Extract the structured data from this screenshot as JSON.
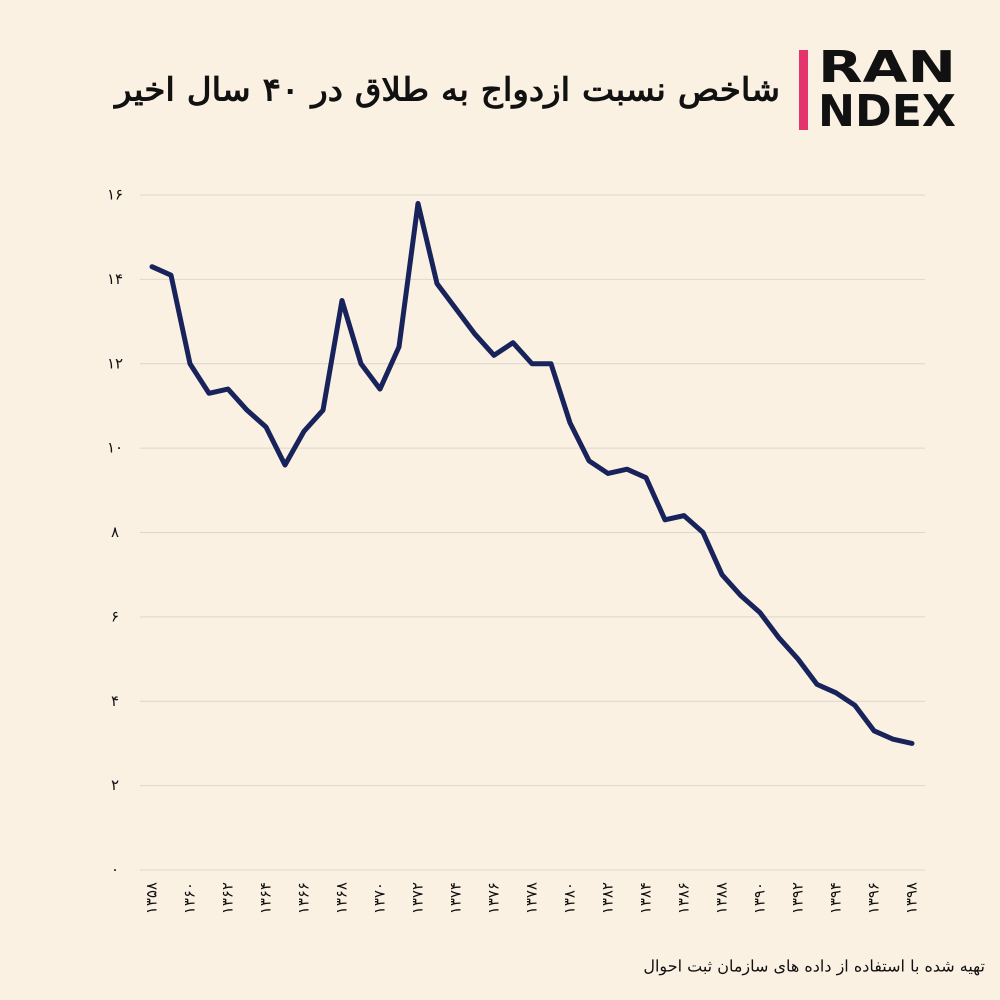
{
  "chart_data": {
    "type": "line",
    "title": "شاخص نسبت ازدواج به طلاق در ۴۰ سال اخیر",
    "logo": [
      "RAN",
      "NDEX"
    ],
    "source": "تهیه شده با استفاده از داده های سازمان ثبت احوال",
    "categories": [
      "۱۳۵۸",
      null,
      "۱۳۶۰",
      null,
      "۱۳۶۲",
      null,
      "۱۳۶۴",
      null,
      "۱۳۶۶",
      null,
      "۱۳۶۸",
      null,
      "۱۳۷۰",
      null,
      "۱۳۷۲",
      null,
      "۱۳۷۴",
      null,
      "۱۳۷۶",
      null,
      "۱۳۷۸",
      null,
      "۱۳۸۰",
      null,
      "۱۳۸۲",
      null,
      "۱۳۸۴",
      null,
      "۱۳۸۶",
      null,
      "۱۳۸۸",
      null,
      "۱۳۹۰",
      null,
      "۱۳۹۲",
      null,
      "۱۳۹۴",
      null,
      "۱۳۹۶",
      null,
      "۱۳۹۸"
    ],
    "series": [
      {
        "color": "#17235a",
        "values": [
          14.3,
          14.1,
          12.0,
          11.3,
          11.4,
          10.9,
          10.5,
          9.6,
          10.4,
          10.9,
          13.5,
          12.0,
          11.4,
          12.4,
          15.8,
          13.9,
          13.3,
          12.7,
          12.2,
          12.5,
          12.0,
          12.0,
          10.6,
          9.7,
          9.4,
          9.5,
          9.3,
          8.3,
          8.4,
          8.0,
          7.0,
          6.5,
          6.1,
          5.5,
          5.0,
          4.4,
          4.2,
          3.9,
          3.3,
          3.1,
          3.0
        ]
      }
    ],
    "ylim": [
      0,
      16
    ],
    "yticks": [
      {
        "value": 0,
        "label": "۰"
      },
      {
        "value": 2,
        "label": "۲"
      },
      {
        "value": 4,
        "label": "۴"
      },
      {
        "value": 6,
        "label": "۶"
      },
      {
        "value": 8,
        "label": "۸"
      },
      {
        "value": 10,
        "label": "۱۰"
      },
      {
        "value": 12,
        "label": "۱۲"
      },
      {
        "value": 14,
        "label": "۱۴"
      },
      {
        "value": 16,
        "label": "۱۶"
      }
    ],
    "grid": true
  }
}
